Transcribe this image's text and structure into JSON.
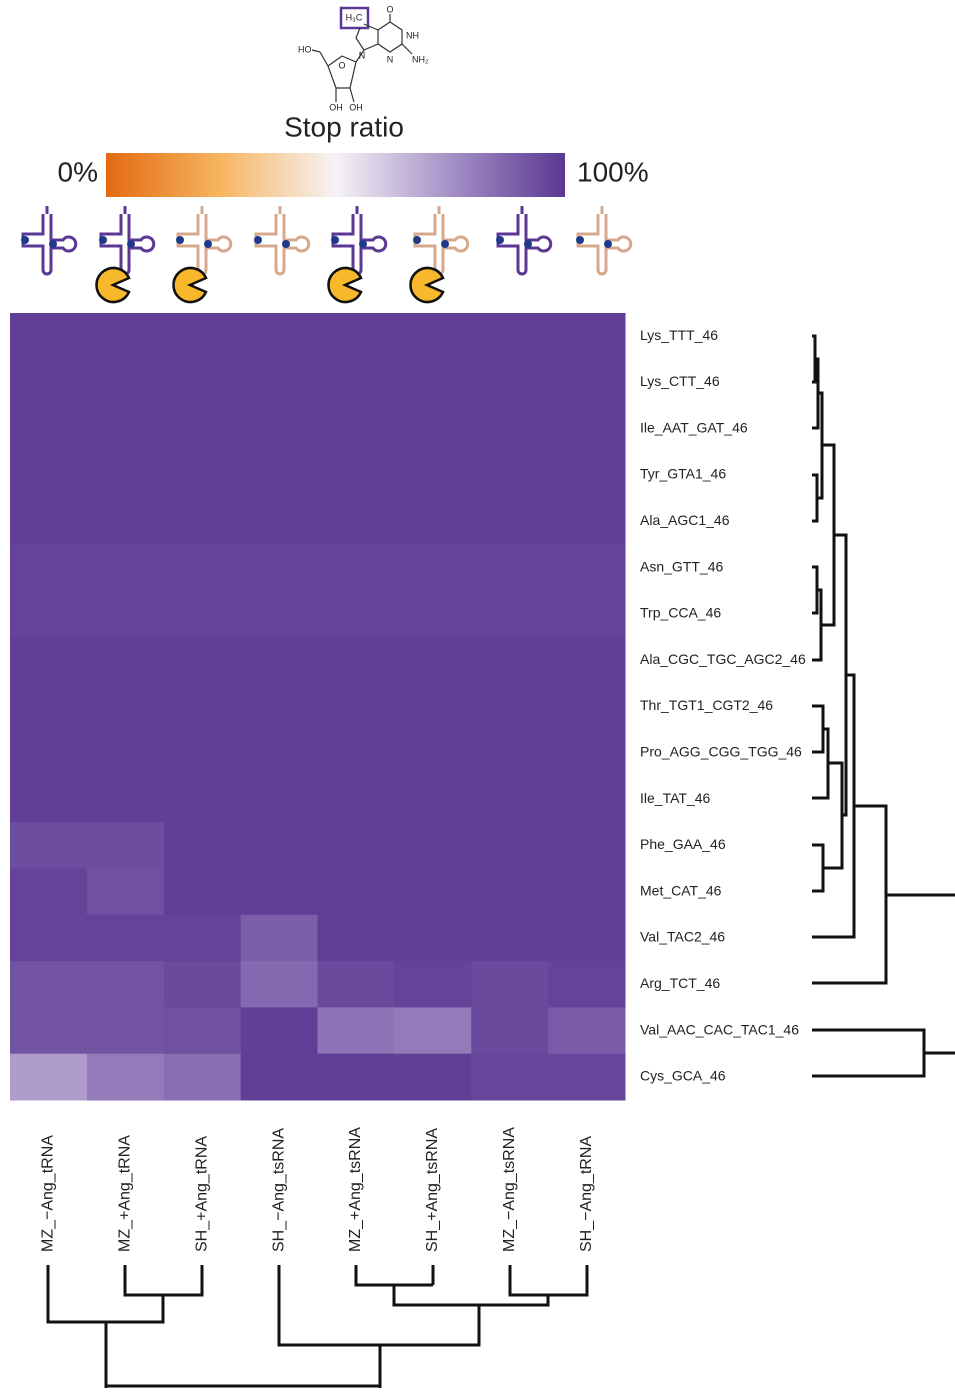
{
  "chart_data": {
    "type": "heatmap",
    "title": "Stop ratio",
    "columns": [
      "MZ_−Ang_tRNA",
      "MZ_+Ang_tRNA",
      "SH_+Ang_tRNA",
      "SH_−Ang_tsRNA",
      "MZ_+Ang_tsRNA",
      "SH_+Ang_tsRNA",
      "MZ_−Ang_tsRNA",
      "SH_−Ang_tRNA"
    ],
    "rows": [
      "Lys_TTT_46",
      "Lys_CTT_46",
      "Ile_AAT_GAT_46",
      "Tyr_GTA1_46",
      "Ala_AGC1_46",
      "Asn_GTT_46",
      "Trp_CCA_46",
      "Ala_CGC_TGC_AGC2_46",
      "Thr_TGT1_CGT2_46",
      "Pro_AGG_CGG_TGG_46",
      "Ile_TAT_46",
      "Phe_GAA_46",
      "Met_CAT_46",
      "Val_TAC2_46",
      "Arg_TCT_46",
      "Val_AAC_CAC_TAC1_46",
      "Cys_GCA_46"
    ],
    "values": [
      [
        98,
        98,
        98,
        98,
        98,
        98,
        98,
        98
      ],
      [
        98,
        98,
        98,
        98,
        98,
        98,
        98,
        98
      ],
      [
        98,
        98,
        98,
        98,
        98,
        98,
        98,
        98
      ],
      [
        98,
        98,
        98,
        98,
        98,
        98,
        98,
        98
      ],
      [
        98,
        98,
        98,
        98,
        98,
        98,
        98,
        98
      ],
      [
        97,
        97,
        97,
        97,
        97,
        97,
        97,
        97
      ],
      [
        97,
        97,
        97,
        97,
        97,
        97,
        97,
        97
      ],
      [
        98,
        98,
        98,
        98,
        98,
        98,
        98,
        98
      ],
      [
        98,
        98,
        98,
        98,
        98,
        98,
        98,
        98
      ],
      [
        98,
        98,
        98,
        98,
        98,
        98,
        98,
        98
      ],
      [
        98,
        98,
        98,
        98,
        98,
        98,
        98,
        98
      ],
      [
        94,
        94,
        98,
        98,
        98,
        98,
        98,
        98
      ],
      [
        97,
        93,
        98,
        98,
        98,
        98,
        98,
        98
      ],
      [
        97,
        97,
        97,
        89,
        98,
        98,
        98,
        98
      ],
      [
        92,
        92,
        95,
        86,
        95,
        97,
        95,
        97
      ],
      [
        92,
        92,
        93,
        98,
        83,
        81,
        95,
        90
      ],
      [
        72,
        81,
        85,
        98,
        98,
        98,
        96,
        96
      ]
    ],
    "zlim": [
      0,
      100
    ],
    "colorbar_ticks": [
      {
        "value": 0,
        "label": "0%"
      },
      {
        "value": 100,
        "label": "100%"
      }
    ],
    "colormap": [
      "#e26a12",
      "#f7b560",
      "#f6f3f6",
      "#a590c6",
      "#5b3893"
    ]
  },
  "molecule": {
    "labels": [
      "H₃C",
      "O",
      "NH",
      "NH₂",
      "N",
      "N",
      "HO",
      "O",
      "OH",
      "OH"
    ]
  }
}
